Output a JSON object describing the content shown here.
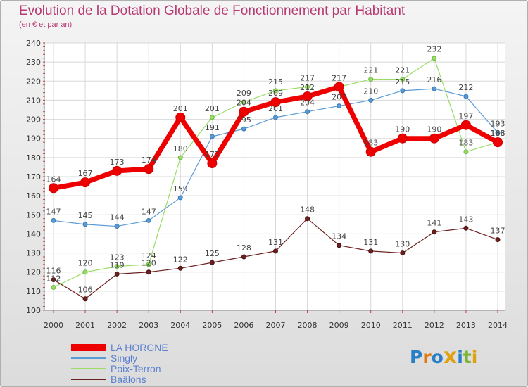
{
  "title": "Evolution de la Dotation Globale de Fonctionnement par Habitant",
  "subtitle": "(en € et par an)",
  "brand": "Proxiti",
  "chart_data": {
    "type": "line",
    "title": "Evolution de la Dotation Globale de Fonctionnement par Habitant",
    "subtitle": "(en € et par an)",
    "xlabel": "",
    "ylabel": "",
    "ylim": [
      100,
      240
    ],
    "yticks": [
      100,
      110,
      120,
      130,
      140,
      150,
      160,
      170,
      180,
      190,
      200,
      210,
      220,
      230,
      240
    ],
    "categories": [
      "2000",
      "2001",
      "2002",
      "2003",
      "2004",
      "2005",
      "2006",
      "2007",
      "2008",
      "2009",
      "2010",
      "2011",
      "2012",
      "2013",
      "2014"
    ],
    "grid": true,
    "legend_position": "bottom-left",
    "series": [
      {
        "name": "LA HORGNE",
        "color": "#ee0000",
        "values": [
          164,
          167,
          173,
          174,
          201,
          177,
          204,
          209,
          212,
          217,
          183,
          190,
          190,
          197,
          188
        ]
      },
      {
        "name": "Singly",
        "color": "#5b9bd5",
        "values": [
          147,
          145,
          144,
          147,
          159,
          191,
          195,
          201,
          204,
          207,
          210,
          215,
          216,
          212,
          193
        ]
      },
      {
        "name": "Poix-Terron",
        "color": "#99dd66",
        "values": [
          112,
          120,
          123,
          124,
          180,
          201,
          209,
          215,
          217,
          217,
          221,
          221,
          232,
          183,
          188
        ]
      },
      {
        "name": "Baâlons",
        "color": "#6b2020",
        "values": [
          116,
          106,
          119,
          120,
          122,
          125,
          128,
          131,
          148,
          134,
          131,
          130,
          141,
          143,
          137
        ]
      }
    ]
  }
}
